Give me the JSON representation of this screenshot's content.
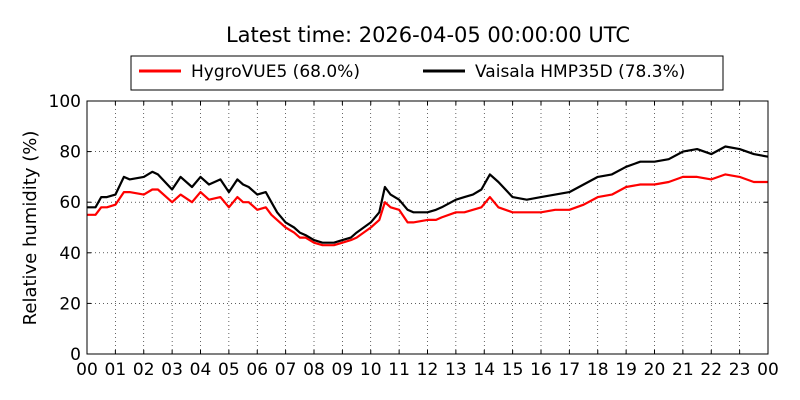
{
  "chart_data": {
    "type": "line",
    "title": "Latest time: 2026-04-05 00:00:00 UTC",
    "xlabel": "",
    "ylabel": "Relative humidity (%)",
    "ylim": [
      0,
      100
    ],
    "xlim": [
      0,
      24
    ],
    "y_ticks": [
      0,
      20,
      40,
      60,
      80,
      100
    ],
    "x_tick_labels": [
      "00",
      "01",
      "02",
      "03",
      "04",
      "05",
      "06",
      "07",
      "08",
      "09",
      "10",
      "11",
      "12",
      "13",
      "14",
      "15",
      "16",
      "17",
      "18",
      "19",
      "20",
      "21",
      "22",
      "23",
      "00"
    ],
    "grid": true,
    "legend_position": "top-center",
    "x_unit": "hours UTC",
    "series": [
      {
        "name": "HygroVUE5 (68.0%)",
        "color": "#ff0000",
        "x": [
          0,
          0.3,
          0.5,
          0.7,
          1.0,
          1.3,
          1.5,
          2.0,
          2.3,
          2.5,
          3.0,
          3.3,
          3.7,
          4.0,
          4.3,
          4.7,
          5.0,
          5.3,
          5.5,
          5.7,
          6.0,
          6.3,
          6.5,
          6.7,
          7.0,
          7.3,
          7.5,
          7.7,
          8.0,
          8.3,
          8.5,
          8.7,
          9.0,
          9.3,
          9.5,
          10.0,
          10.3,
          10.5,
          10.7,
          11.0,
          11.3,
          11.5,
          12.0,
          12.3,
          12.5,
          13.0,
          13.3,
          13.6,
          13.9,
          14.2,
          14.5,
          15.0,
          15.5,
          16.0,
          16.5,
          17.0,
          17.5,
          18.0,
          18.5,
          19.0,
          19.5,
          20.0,
          20.5,
          21.0,
          21.5,
          22.0,
          22.5,
          23.0,
          23.5,
          24.0
        ],
        "y": [
          55,
          55,
          58,
          58,
          59,
          64,
          64,
          63,
          65,
          65,
          60,
          63,
          60,
          64,
          61,
          62,
          58,
          62,
          60,
          60,
          57,
          58,
          55,
          53,
          50,
          48,
          46,
          46,
          44,
          43,
          43,
          43,
          44,
          45,
          46,
          50,
          53,
          60,
          58,
          57,
          52,
          52,
          53,
          53,
          54,
          56,
          56,
          57,
          58,
          62,
          58,
          56,
          56,
          56,
          57,
          57,
          59,
          62,
          63,
          66,
          67,
          67,
          68,
          70,
          70,
          69,
          71,
          70,
          68,
          68
        ]
      },
      {
        "name": "Vaisala HMP35D (78.3%)",
        "color": "#000000",
        "x": [
          0,
          0.3,
          0.5,
          0.7,
          1.0,
          1.3,
          1.5,
          2.0,
          2.3,
          2.5,
          3.0,
          3.3,
          3.7,
          4.0,
          4.3,
          4.7,
          5.0,
          5.3,
          5.5,
          5.7,
          6.0,
          6.3,
          6.5,
          6.7,
          7.0,
          7.3,
          7.5,
          7.7,
          8.0,
          8.3,
          8.5,
          8.7,
          9.0,
          9.3,
          9.5,
          10.0,
          10.3,
          10.5,
          10.7,
          11.0,
          11.3,
          11.5,
          12.0,
          12.3,
          12.5,
          13.0,
          13.3,
          13.6,
          13.9,
          14.2,
          14.5,
          15.0,
          15.5,
          16.0,
          16.5,
          17.0,
          17.5,
          18.0,
          18.5,
          19.0,
          19.5,
          20.0,
          20.5,
          21.0,
          21.5,
          22.0,
          22.5,
          23.0,
          23.5,
          24.0
        ],
        "y": [
          58,
          58,
          62,
          62,
          63,
          70,
          69,
          70,
          72,
          71,
          65,
          70,
          66,
          70,
          67,
          69,
          64,
          69,
          67,
          66,
          63,
          64,
          60,
          56,
          52,
          50,
          48,
          47,
          45,
          44,
          44,
          44,
          45,
          46,
          48,
          52,
          56,
          66,
          63,
          61,
          57,
          56,
          56,
          57,
          58,
          61,
          62,
          63,
          65,
          71,
          68,
          62,
          61,
          62,
          63,
          64,
          67,
          70,
          71,
          74,
          76,
          76,
          77,
          80,
          81,
          79,
          82,
          81,
          79,
          78
        ]
      }
    ]
  }
}
